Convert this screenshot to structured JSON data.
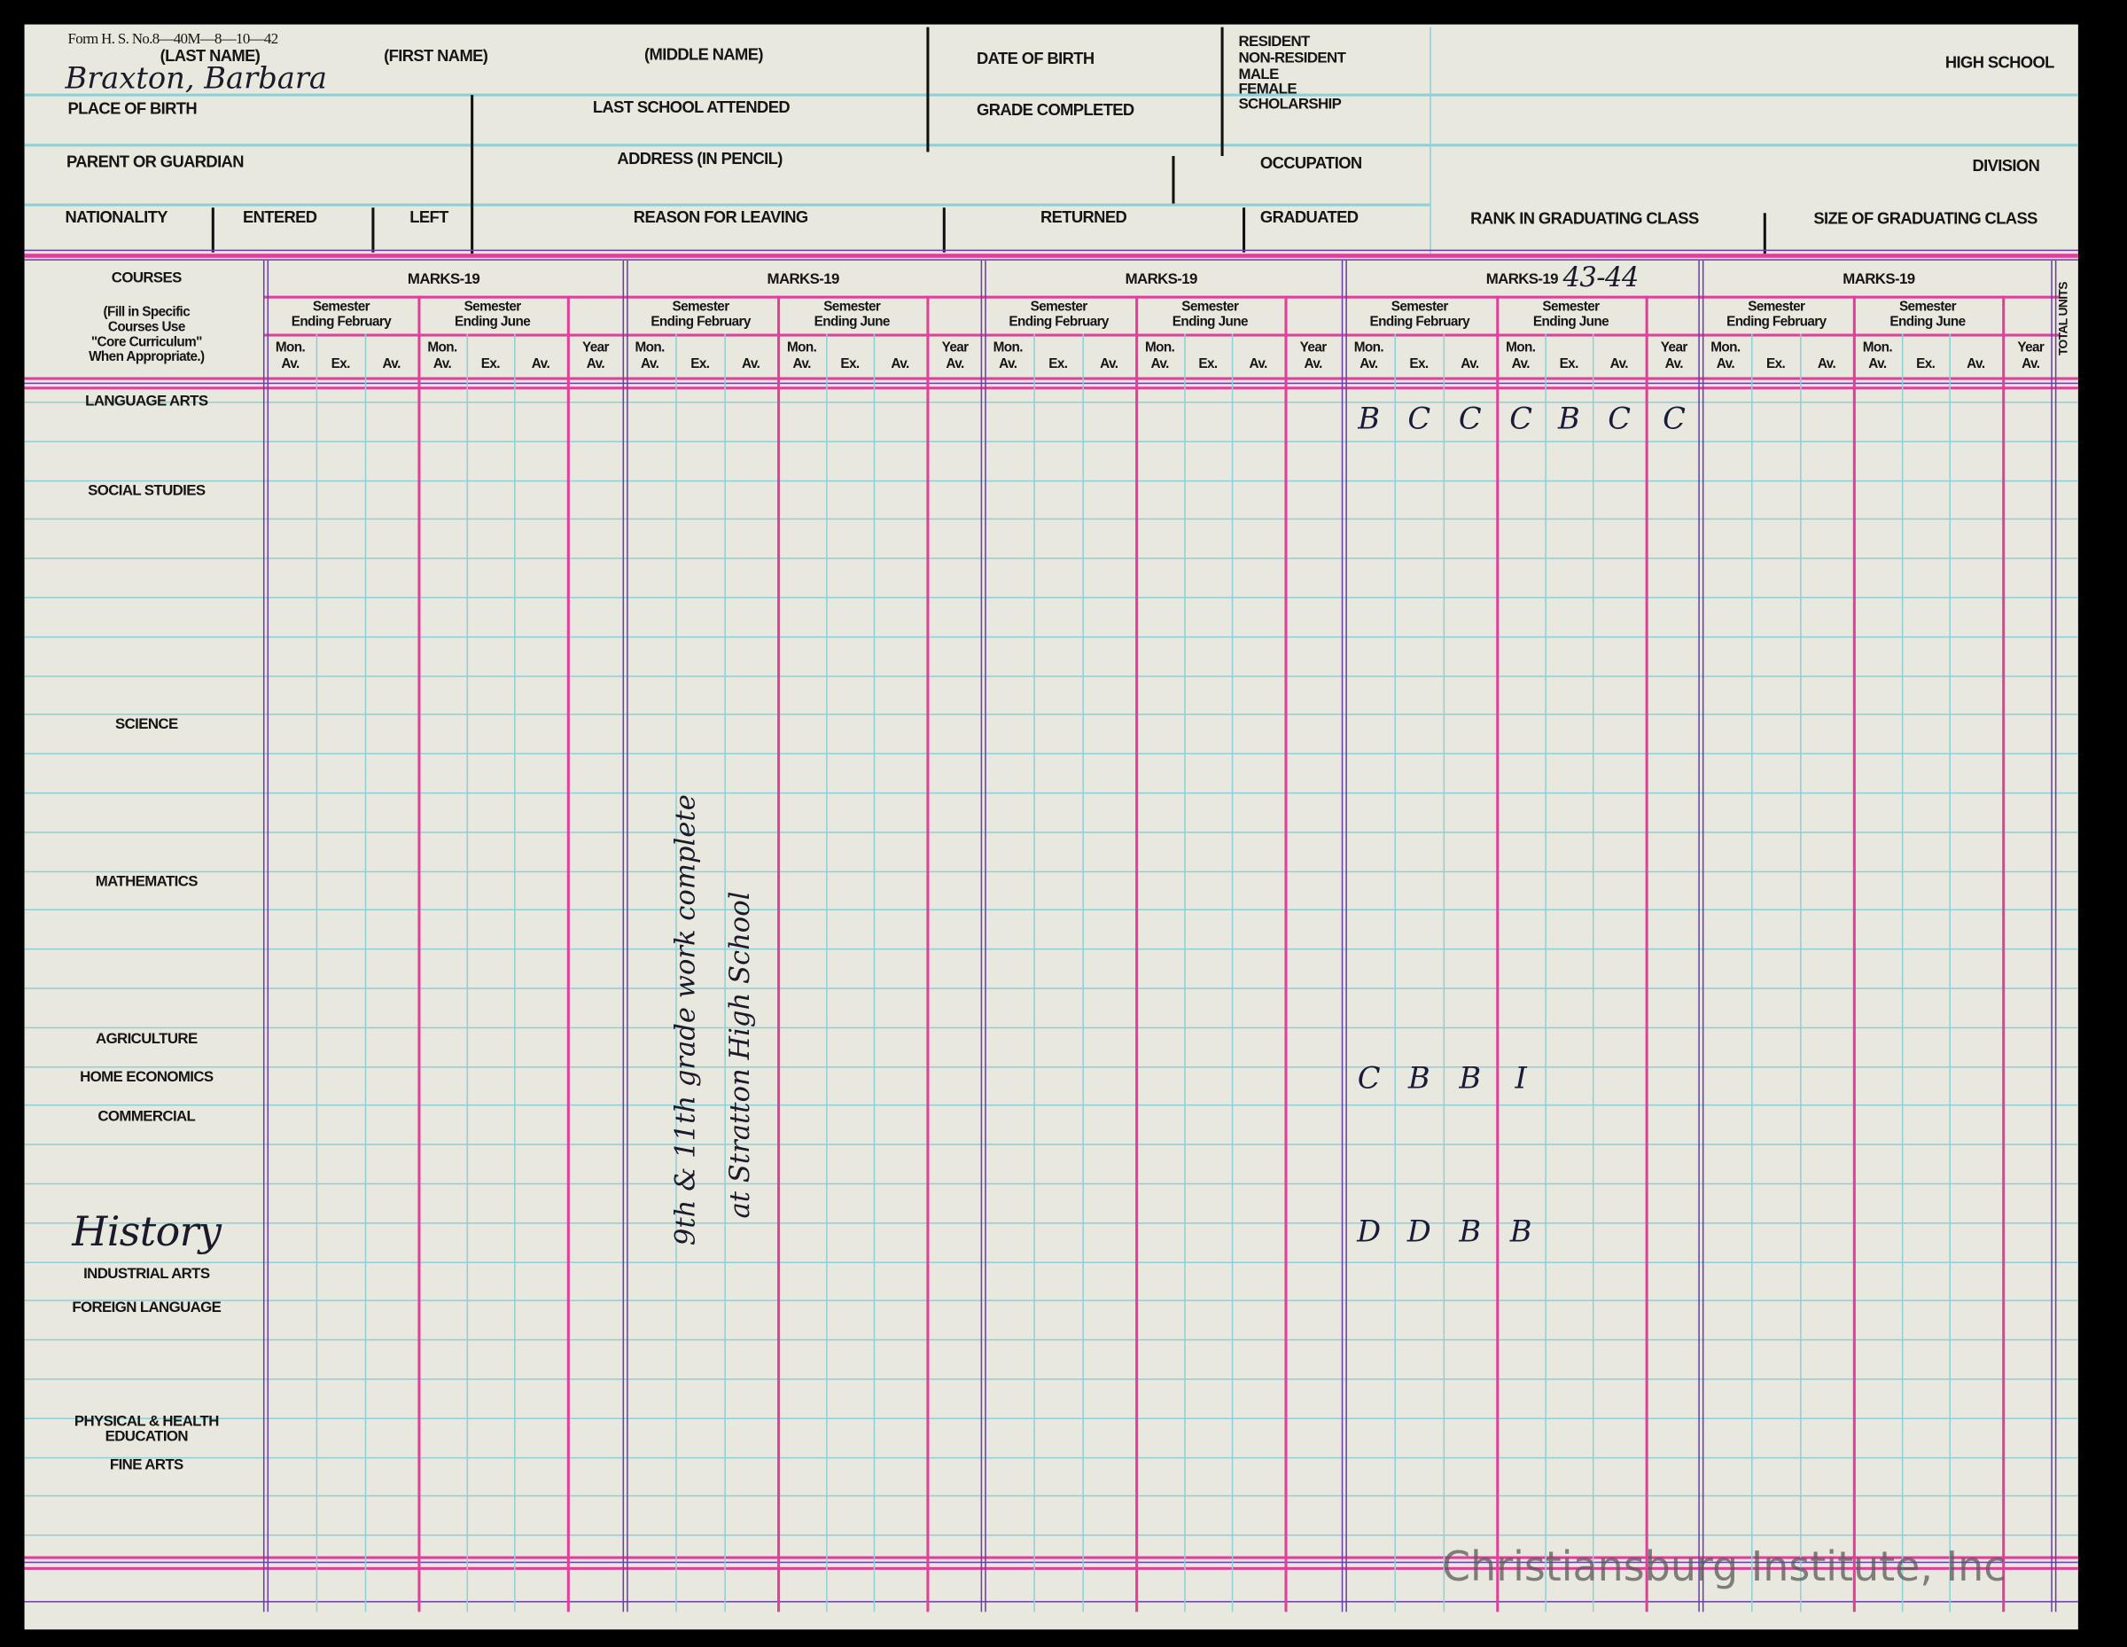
{
  "form": {
    "form_number": "Form H. S. No.8—40M—8—10—42",
    "last_name_label": "(LAST NAME)",
    "first_name_label": "(FIRST NAME)",
    "middle_name_label": "(MIDDLE NAME)",
    "date_of_birth_label": "DATE OF BIRTH",
    "status_options": [
      "RESIDENT",
      "NON-RESIDENT",
      "MALE",
      "FEMALE",
      "SCHOLARSHIP"
    ],
    "high_school_label": "HIGH SCHOOL",
    "student_name": "Braxton, Barbara",
    "place_of_birth_label": "PLACE OF BIRTH",
    "last_school_label": "LAST SCHOOL ATTENDED",
    "grade_completed_label": "GRADE COMPLETED",
    "parent_label": "PARENT OR GUARDIAN",
    "address_label": "ADDRESS (IN PENCIL)",
    "occupation_label": "OCCUPATION",
    "division_label": "DIVISION",
    "nationality_label": "NATIONALITY",
    "entered_label": "ENTERED",
    "left_label": "LEFT",
    "reason_label": "REASON FOR LEAVING",
    "returned_label": "RETURNED",
    "graduated_label": "GRADUATED",
    "rank_label": "RANK IN GRADUATING CLASS",
    "size_label": "SIZE OF GRADUATING CLASS"
  },
  "table": {
    "courses_header": "COURSES",
    "courses_instructions": [
      "(Fill in Specific",
      "Courses Use",
      "\"Core Curriculum\"",
      "When Appropriate.)"
    ],
    "total_units_label": "TOTAL UNITS",
    "marks_blocks": [
      {
        "label": "MARKS-19",
        "year_handwritten": ""
      },
      {
        "label": "MARKS-19",
        "year_handwritten": ""
      },
      {
        "label": "MARKS-19",
        "year_handwritten": ""
      },
      {
        "label": "MARKS-19",
        "year_handwritten": "43-44"
      },
      {
        "label": "MARKS-19",
        "year_handwritten": ""
      }
    ],
    "semester_labels": [
      [
        "Semester",
        "Ending February"
      ],
      [
        "Semester",
        "Ending June"
      ]
    ],
    "column_labels": [
      [
        "Mon.",
        "Av."
      ],
      [
        "",
        "Ex."
      ],
      [
        "",
        "Av."
      ],
      [
        "Mon.",
        "Av."
      ],
      [
        "",
        "Ex."
      ],
      [
        "",
        "Av."
      ],
      [
        "Year",
        "Av."
      ]
    ],
    "courses": [
      {
        "label": "LANGUAGE ARTS"
      },
      {
        "label": "SOCIAL STUDIES"
      },
      {
        "label": "SCIENCE"
      },
      {
        "label": "MATHEMATICS"
      },
      {
        "label": "AGRICULTURE"
      },
      {
        "label": "HOME ECONOMICS"
      },
      {
        "label": "COMMERCIAL"
      },
      {
        "label": "History",
        "handwritten": true
      },
      {
        "label": "INDUSTRIAL ARTS"
      },
      {
        "label": "FOREIGN LANGUAGE"
      },
      {
        "label": "PHYSICAL & HEALTH EDUCATION"
      },
      {
        "label": "FINE ARTS"
      }
    ],
    "marks": [
      {
        "course": "LANGUAGE ARTS",
        "block": 4,
        "values": [
          "B",
          "C",
          "C",
          "C",
          "B",
          "C",
          "C"
        ]
      },
      {
        "course": "HOME ECONOMICS",
        "block": 4,
        "values": [
          "C",
          "B",
          "B",
          "I"
        ]
      },
      {
        "course": "History",
        "block": 4,
        "values": [
          "D",
          "D",
          "B",
          "B"
        ]
      }
    ],
    "note_lines": [
      "9th & 11th grade work complete",
      "at Stratton High School"
    ]
  },
  "watermark": "Christiansburg Institute, Inc",
  "colors": {
    "paper": "#e9e8df",
    "grid_cyan": "#8fd0d6",
    "rule_pink": "#e0409a",
    "rule_purple": "#6a3fa8"
  }
}
